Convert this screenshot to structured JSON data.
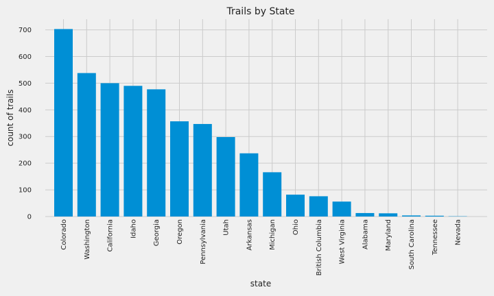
{
  "chart_data": {
    "type": "bar",
    "title": "Trails by State",
    "xlabel": "state",
    "ylabel": "count of trails",
    "categories": [
      "Colorado",
      "Washington",
      "California",
      "Idaho",
      "Georgia",
      "Oregon",
      "Pennsylvania",
      "Utah",
      "Arkansas",
      "Michigan",
      "Ohio",
      "British Columbia",
      "West Virginia",
      "Alabama",
      "Maryland",
      "South Carolina",
      "Tennessee",
      "Nevada"
    ],
    "values": [
      703,
      538,
      500,
      490,
      477,
      357,
      347,
      298,
      237,
      166,
      82,
      76,
      56,
      13,
      12,
      4,
      3,
      1
    ],
    "ylim": [
      0,
      740
    ],
    "yticks": [
      0,
      100,
      200,
      300,
      400,
      500,
      600,
      700
    ],
    "grid": true,
    "colors": {
      "bar": "#008fd5",
      "background": "#f0f0f0",
      "grid": "#cbcbcb"
    }
  }
}
